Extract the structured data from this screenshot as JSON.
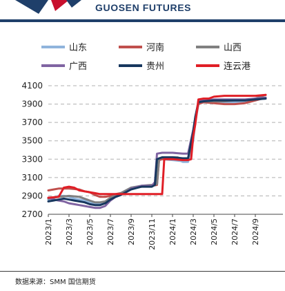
{
  "header": {
    "brand_text": "GUOSEN FUTURES",
    "brand_color": "#1f3f6a",
    "logo_colors": [
      "#1f3f6a",
      "#c8102e"
    ]
  },
  "chart_data": {
    "type": "line",
    "title": "",
    "xlabel": "",
    "ylabel": "",
    "ylim": [
      2700,
      4100
    ],
    "yticks": [
      2700,
      2900,
      3100,
      3300,
      3500,
      3700,
      3900,
      4100
    ],
    "xticks": [
      "2023/1",
      "2023/3",
      "2023/5",
      "2023/7",
      "2023/9",
      "2023/11",
      "2024/1",
      "2024/3",
      "2024/5",
      "2024/7",
      "2024/9"
    ],
    "xlim": [
      0,
      21
    ],
    "grid": "horizontal dashed",
    "legend_position": "top",
    "series": [
      {
        "name": "山东",
        "color": "#8fb4dc",
        "points": [
          [
            0,
            2860
          ],
          [
            0.5,
            2880
          ],
          [
            1,
            2900
          ],
          [
            1.5,
            2900
          ],
          [
            2,
            2890
          ],
          [
            2.5,
            2870
          ],
          [
            3,
            2860
          ],
          [
            3.5,
            2850
          ],
          [
            4,
            2830
          ],
          [
            4.5,
            2820
          ],
          [
            5,
            2820
          ],
          [
            5.5,
            2830
          ],
          [
            6,
            2870
          ],
          [
            6.5,
            2910
          ],
          [
            7,
            2930
          ],
          [
            7.5,
            2960
          ],
          [
            8,
            2990
          ],
          [
            9,
            3010
          ],
          [
            10,
            3010
          ],
          [
            10.5,
            3020
          ],
          [
            10.7,
            3290
          ],
          [
            11,
            3300
          ],
          [
            12,
            3290
          ],
          [
            12.8,
            3280
          ],
          [
            13,
            3270
          ],
          [
            13.5,
            3270
          ],
          [
            14,
            3500
          ],
          [
            14.2,
            3700
          ],
          [
            14.5,
            3900
          ],
          [
            15,
            3920
          ],
          [
            16,
            3920
          ],
          [
            17,
            3920
          ],
          [
            18,
            3920
          ],
          [
            19,
            3930
          ],
          [
            20,
            3950
          ],
          [
            21,
            3960
          ]
        ]
      },
      {
        "name": "河南",
        "color": "#c0504d",
        "points": [
          [
            0,
            2960
          ],
          [
            0.5,
            2970
          ],
          [
            1,
            2980
          ],
          [
            2,
            2980
          ],
          [
            3,
            2970
          ],
          [
            3.5,
            2950
          ],
          [
            4,
            2940
          ],
          [
            4.5,
            2910
          ],
          [
            5,
            2890
          ],
          [
            5.5,
            2890
          ],
          [
            6,
            2900
          ],
          [
            6.5,
            2920
          ],
          [
            7,
            2930
          ],
          [
            7.5,
            2950
          ],
          [
            8,
            2980
          ],
          [
            9,
            3000
          ],
          [
            10,
            3010
          ],
          [
            10.5,
            3020
          ],
          [
            10.7,
            3290
          ],
          [
            11,
            3300
          ],
          [
            12,
            3300
          ],
          [
            12.5,
            3310
          ],
          [
            13,
            3300
          ],
          [
            13.5,
            3300
          ],
          [
            14,
            3550
          ],
          [
            14.2,
            3720
          ],
          [
            14.5,
            3900
          ],
          [
            15,
            3920
          ],
          [
            16,
            3910
          ],
          [
            17,
            3900
          ],
          [
            18,
            3900
          ],
          [
            19,
            3910
          ],
          [
            20,
            3940
          ],
          [
            21,
            3970
          ]
        ]
      },
      {
        "name": "山西",
        "color": "#808080",
        "points": [
          [
            0,
            2870
          ],
          [
            0.5,
            2880
          ],
          [
            1,
            2890
          ],
          [
            2,
            2900
          ],
          [
            3,
            2890
          ],
          [
            3.5,
            2870
          ],
          [
            4,
            2850
          ],
          [
            4.5,
            2830
          ],
          [
            5,
            2830
          ],
          [
            5.5,
            2840
          ],
          [
            6,
            2880
          ],
          [
            6.5,
            2910
          ],
          [
            7,
            2930
          ],
          [
            7.5,
            2960
          ],
          [
            8,
            2990
          ],
          [
            9,
            3010
          ],
          [
            10,
            3020
          ],
          [
            10.5,
            3030
          ],
          [
            10.7,
            3310
          ],
          [
            11,
            3320
          ],
          [
            12,
            3320
          ],
          [
            12.5,
            3320
          ],
          [
            13,
            3300
          ],
          [
            13.5,
            3300
          ],
          [
            14,
            3600
          ],
          [
            14.2,
            3750
          ],
          [
            14.5,
            3920
          ],
          [
            15,
            3930
          ],
          [
            16,
            3930
          ],
          [
            17,
            3930
          ],
          [
            18,
            3940
          ],
          [
            19,
            3940
          ],
          [
            20,
            3960
          ],
          [
            21,
            4000
          ]
        ]
      },
      {
        "name": "广西",
        "color": "#8064a2",
        "points": [
          [
            0,
            2880
          ],
          [
            0.5,
            2860
          ],
          [
            1,
            2850
          ],
          [
            1.5,
            2840
          ],
          [
            2,
            2820
          ],
          [
            2.5,
            2810
          ],
          [
            3,
            2800
          ],
          [
            3.5,
            2790
          ],
          [
            4,
            2780
          ],
          [
            4.5,
            2770
          ],
          [
            5,
            2770
          ],
          [
            5.5,
            2790
          ],
          [
            6,
            2850
          ],
          [
            6.5,
            2890
          ],
          [
            7,
            2910
          ],
          [
            7.5,
            2940
          ],
          [
            8,
            2980
          ],
          [
            9,
            3010
          ],
          [
            10,
            3010
          ],
          [
            10.3,
            3050
          ],
          [
            10.5,
            3360
          ],
          [
            11,
            3370
          ],
          [
            12,
            3370
          ],
          [
            13,
            3360
          ],
          [
            13.5,
            3360
          ],
          [
            14,
            3620
          ],
          [
            14.2,
            3750
          ],
          [
            14.5,
            3930
          ],
          [
            15,
            3940
          ],
          [
            16,
            3950
          ],
          [
            17,
            3950
          ],
          [
            18,
            3950
          ],
          [
            19,
            3950
          ],
          [
            20,
            3960
          ],
          [
            21,
            3970
          ]
        ]
      },
      {
        "name": "贵州",
        "color": "#17375e",
        "points": [
          [
            0,
            2840
          ],
          [
            0.5,
            2850
          ],
          [
            1,
            2860
          ],
          [
            1.5,
            2870
          ],
          [
            2,
            2860
          ],
          [
            2.5,
            2850
          ],
          [
            3,
            2840
          ],
          [
            3.5,
            2830
          ],
          [
            4,
            2810
          ],
          [
            4.5,
            2800
          ],
          [
            5,
            2800
          ],
          [
            5.5,
            2820
          ],
          [
            6,
            2860
          ],
          [
            6.5,
            2890
          ],
          [
            7,
            2910
          ],
          [
            7.5,
            2940
          ],
          [
            8,
            2970
          ],
          [
            9,
            3000
          ],
          [
            10,
            3000
          ],
          [
            10.3,
            3020
          ],
          [
            10.5,
            3300
          ],
          [
            11,
            3320
          ],
          [
            12,
            3320
          ],
          [
            13,
            3310
          ],
          [
            13.5,
            3310
          ],
          [
            14,
            3600
          ],
          [
            14.2,
            3760
          ],
          [
            14.5,
            3920
          ],
          [
            15,
            3930
          ],
          [
            16,
            3940
          ],
          [
            17,
            3940
          ],
          [
            18,
            3940
          ],
          [
            19,
            3940
          ],
          [
            20,
            3950
          ],
          [
            21,
            3960
          ]
        ]
      },
      {
        "name": "连云港",
        "color": "#e01e26",
        "points": [
          [
            0,
            2880
          ],
          [
            1,
            2890
          ],
          [
            1.5,
            2990
          ],
          [
            2,
            3000
          ],
          [
            2.5,
            2990
          ],
          [
            3,
            2960
          ],
          [
            4,
            2940
          ],
          [
            4.5,
            2930
          ],
          [
            5,
            2920
          ],
          [
            8,
            2920
          ],
          [
            10,
            2920
          ],
          [
            11,
            2920
          ],
          [
            11.2,
            3300
          ],
          [
            12,
            3300
          ],
          [
            13,
            3290
          ],
          [
            13.5,
            3290
          ],
          [
            13.8,
            3300
          ],
          [
            14,
            3550
          ],
          [
            14.2,
            3680
          ],
          [
            14.5,
            3950
          ],
          [
            15,
            3960
          ],
          [
            15.5,
            3960
          ],
          [
            16,
            3980
          ],
          [
            17,
            3990
          ],
          [
            18,
            3990
          ],
          [
            19,
            3990
          ],
          [
            20,
            3990
          ],
          [
            21,
            4000
          ]
        ]
      }
    ]
  },
  "source": {
    "text": "数据来源：SMM 国信期货"
  }
}
